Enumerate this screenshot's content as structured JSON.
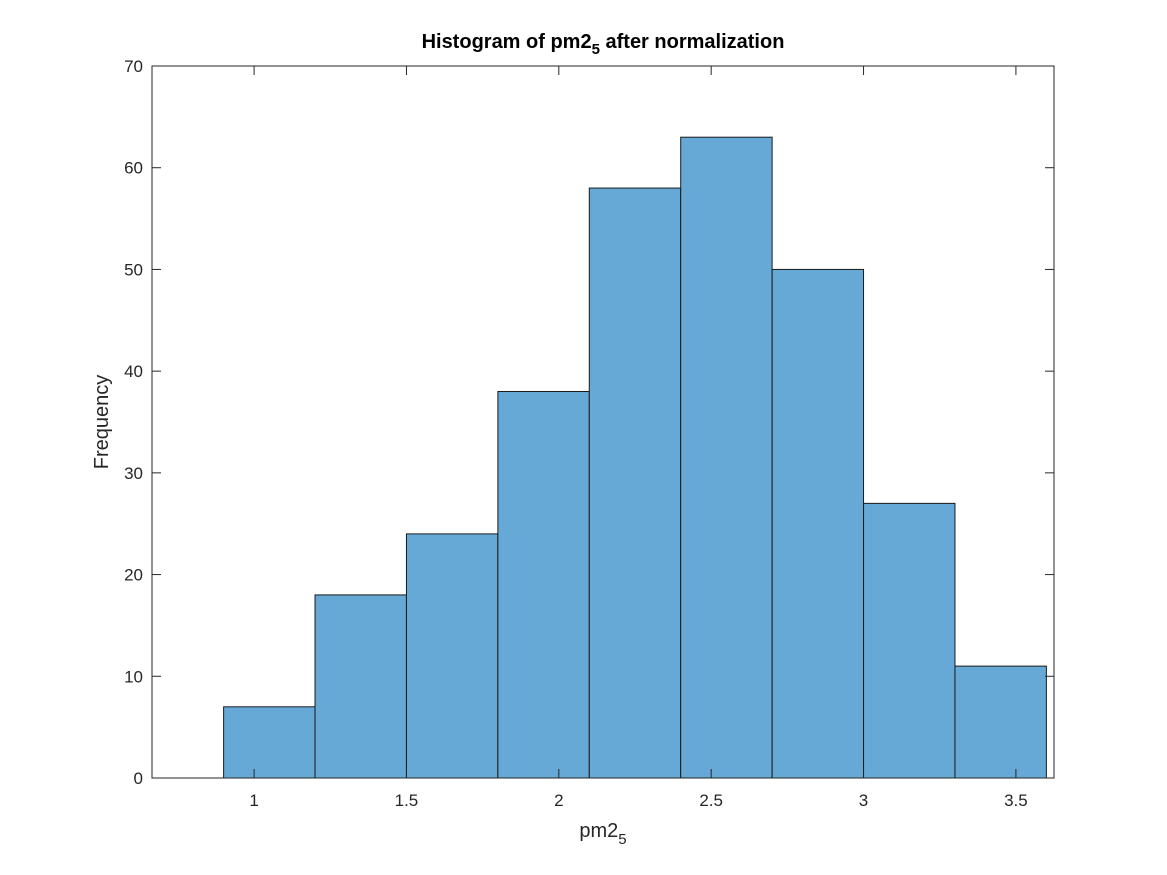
{
  "chart_data": {
    "type": "bar",
    "subtype": "histogram",
    "title": {
      "main": "Histogram of pm2",
      "sub": "5",
      "rest": " after normalization"
    },
    "xlabel": {
      "main": "pm2",
      "sub": "5"
    },
    "ylabel": "Frequency",
    "bin_edges": [
      0.9,
      1.2,
      1.5,
      1.8,
      2.1,
      2.4,
      2.7,
      3.0,
      3.3,
      3.6
    ],
    "values": [
      7,
      18,
      24,
      38,
      58,
      63,
      50,
      27,
      11
    ],
    "xlim": [
      0.665,
      3.625
    ],
    "ylim": [
      0,
      70
    ],
    "xticks": [
      1,
      1.5,
      2,
      2.5,
      3,
      3.5
    ],
    "xtick_labels": [
      "1",
      "1.5",
      "2",
      "2.5",
      "3",
      "3.5"
    ],
    "yticks": [
      0,
      10,
      20,
      30,
      40,
      50,
      60,
      70
    ],
    "ytick_labels": [
      "0",
      "10",
      "20",
      "30",
      "40",
      "50",
      "60",
      "70"
    ],
    "grid": false,
    "bar_color": "#66A9D7",
    "edge_color": "#1A1A1A",
    "axis_color": "#262626"
  }
}
